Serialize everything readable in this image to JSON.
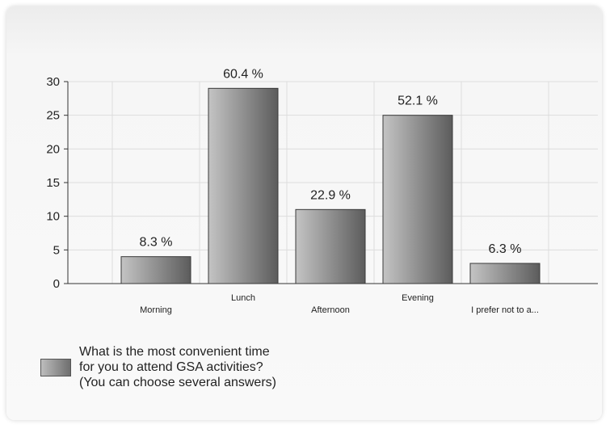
{
  "chart_data": {
    "type": "bar",
    "categories": [
      "Morning",
      "Lunch",
      "Afternoon",
      "Evening",
      "I prefer not to a..."
    ],
    "series": [
      {
        "name": "What is the most convenient time for you to attend GSA activities? (You can choose several answers)",
        "values": [
          4,
          29,
          11,
          25,
          3
        ],
        "data_labels": [
          "8.3 %",
          "60.4 %",
          "22.9 %",
          "52.1 %",
          "6.3 %"
        ]
      }
    ],
    "ylim": [
      0,
      30
    ],
    "yticks": [
      0,
      5,
      10,
      15,
      20,
      25,
      30
    ],
    "grid": true,
    "legend_position": "bottom-left",
    "colors": {
      "bar_light": "#c4c4c4",
      "bar_dark": "#5c5c5c",
      "grid": "#dddddd",
      "axis": "#333333"
    }
  }
}
